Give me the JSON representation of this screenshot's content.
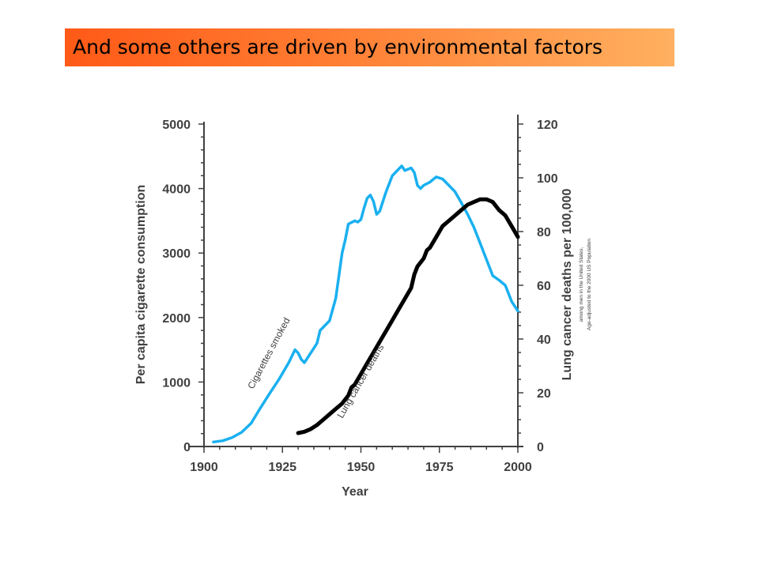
{
  "slide": {
    "title": "And some others are driven by environmental factors"
  },
  "colors": {
    "title_bg_start": "#ff5a17",
    "title_bg_end": "#ffb060",
    "cigarettes": "#1ab0f0",
    "lung": "#000000",
    "axis": "#404040"
  },
  "chart_data": {
    "type": "line",
    "title": "",
    "xlabel": "Year",
    "ylabel_left": "Per capita cigarette consumption",
    "ylabel_right": "Lung cancer deaths per 100,000",
    "right_axis_notes": [
      "among men in the United States,",
      "Age-adjusted to the 2000 US Population"
    ],
    "xlim": [
      1900,
      2000
    ],
    "ylim_left": [
      0,
      5000
    ],
    "ylim_right": [
      0,
      120
    ],
    "x_ticks": [
      1900,
      1925,
      1950,
      1975,
      2000
    ],
    "y_ticks_left": [
      0,
      1000,
      2000,
      3000,
      4000,
      5000
    ],
    "y_ticks_right": [
      0,
      20,
      40,
      60,
      80,
      100,
      120
    ],
    "grid": false,
    "legend": "inline labels",
    "series": [
      {
        "name": "Cigarettes smoked",
        "axis": "left",
        "x": [
          1903,
          1906,
          1909,
          1912,
          1915,
          1918,
          1921,
          1924,
          1927,
          1929,
          1930,
          1931,
          1932,
          1934,
          1936,
          1937,
          1938,
          1940,
          1942,
          1944,
          1945,
          1946,
          1948,
          1949,
          1950,
          1951,
          1952,
          1953,
          1954,
          1955,
          1956,
          1957,
          1958,
          1960,
          1962,
          1963,
          1964,
          1966,
          1967,
          1968,
          1969,
          1970,
          1972,
          1974,
          1976,
          1978,
          1980,
          1982,
          1984,
          1986,
          1988,
          1990,
          1992,
          1994,
          1996,
          1998,
          2000
        ],
        "y": [
          70,
          90,
          140,
          220,
          360,
          600,
          830,
          1050,
          1300,
          1500,
          1450,
          1350,
          1300,
          1450,
          1600,
          1800,
          1850,
          1950,
          2300,
          3000,
          3200,
          3450,
          3500,
          3480,
          3520,
          3700,
          3850,
          3900,
          3800,
          3600,
          3650,
          3800,
          3950,
          4200,
          4300,
          4350,
          4280,
          4320,
          4250,
          4050,
          4000,
          4050,
          4100,
          4180,
          4150,
          4050,
          3950,
          3780,
          3600,
          3400,
          3150,
          2900,
          2650,
          2580,
          2500,
          2250,
          2100
        ]
      },
      {
        "name": "Lung cancer deaths",
        "axis": "right",
        "x": [
          1930,
          1932,
          1934,
          1936,
          1938,
          1940,
          1942,
          1944,
          1946,
          1947,
          1948,
          1950,
          1952,
          1954,
          1956,
          1958,
          1960,
          1962,
          1964,
          1966,
          1967,
          1968,
          1970,
          1971,
          1972,
          1974,
          1976,
          1978,
          1980,
          1982,
          1984,
          1986,
          1988,
          1990,
          1992,
          1994,
          1996,
          1998,
          2000
        ],
        "y": [
          5,
          5.5,
          6.5,
          8,
          10,
          12,
          14,
          16,
          19,
          22,
          23,
          27,
          31,
          35,
          39,
          43,
          47,
          51,
          55,
          59,
          64,
          67,
          70,
          73,
          74,
          78,
          82,
          84,
          86,
          88,
          90,
          91,
          92,
          92,
          91,
          88,
          86,
          82,
          78
        ]
      }
    ]
  }
}
